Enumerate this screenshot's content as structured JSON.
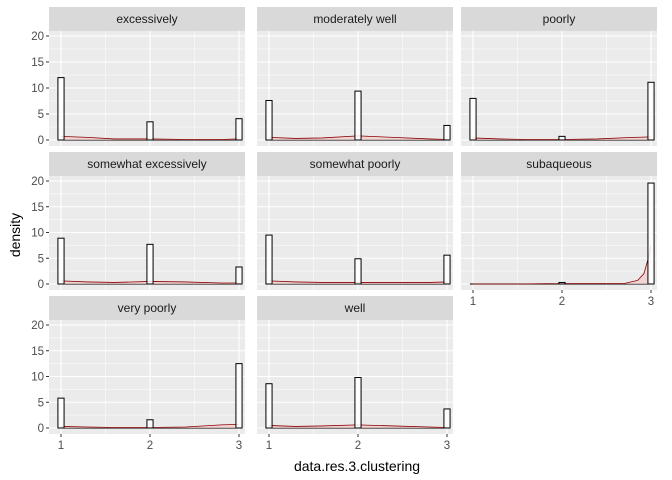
{
  "chart_data": {
    "type": "histogram",
    "xlabel": "data.res.3.clustering",
    "ylabel": "density",
    "xlim": [
      1,
      3
    ],
    "ylim": [
      0,
      20
    ],
    "x_ticks": [
      "1",
      "2",
      "3"
    ],
    "y_ticks": [
      "0",
      "5",
      "10",
      "15",
      "20"
    ],
    "bins": 30,
    "grid": true,
    "legend": "none",
    "colors": {
      "panel_background": "#ebebeb",
      "strip_background": "#d9d9d9",
      "gridline": "#ffffff",
      "bar_fill": "#ffffff",
      "bar_outline": "#000000",
      "density_fill": "#f4cccc",
      "density_line": "#8b0000"
    },
    "facets": [
      {
        "label": "excessively",
        "bars": [
          {
            "x": 1,
            "density": 12.0
          },
          {
            "x": 2,
            "density": 3.5
          },
          {
            "x": 3,
            "density": 4.1
          }
        ],
        "density_curve": [
          [
            1.0,
            0.7
          ],
          [
            1.3,
            0.5
          ],
          [
            1.6,
            0.2
          ],
          [
            2.0,
            0.2
          ],
          [
            2.4,
            0.1
          ],
          [
            2.8,
            0.1
          ],
          [
            3.0,
            0.2
          ]
        ]
      },
      {
        "label": "moderately well",
        "bars": [
          {
            "x": 1,
            "density": 7.6
          },
          {
            "x": 2,
            "density": 9.4
          },
          {
            "x": 3,
            "density": 2.8
          }
        ],
        "density_curve": [
          [
            1.0,
            0.5
          ],
          [
            1.3,
            0.3
          ],
          [
            1.6,
            0.4
          ],
          [
            2.0,
            0.8
          ],
          [
            2.4,
            0.5
          ],
          [
            2.8,
            0.2
          ],
          [
            3.0,
            0.1
          ]
        ]
      },
      {
        "label": "poorly",
        "bars": [
          {
            "x": 1,
            "density": 8.0
          },
          {
            "x": 2,
            "density": 0.7
          },
          {
            "x": 3,
            "density": 11.1
          }
        ],
        "density_curve": [
          [
            1.0,
            0.4
          ],
          [
            1.3,
            0.2
          ],
          [
            1.6,
            0.1
          ],
          [
            2.0,
            0.1
          ],
          [
            2.4,
            0.2
          ],
          [
            2.8,
            0.5
          ],
          [
            3.0,
            0.6
          ]
        ]
      },
      {
        "label": "somewhat excessively",
        "bars": [
          {
            "x": 1,
            "density": 8.9
          },
          {
            "x": 2,
            "density": 7.7
          },
          {
            "x": 3,
            "density": 3.3
          }
        ],
        "density_curve": [
          [
            1.0,
            0.6
          ],
          [
            1.3,
            0.4
          ],
          [
            1.6,
            0.3
          ],
          [
            2.0,
            0.5
          ],
          [
            2.4,
            0.4
          ],
          [
            2.8,
            0.2
          ],
          [
            3.0,
            0.2
          ]
        ]
      },
      {
        "label": "somewhat poorly",
        "bars": [
          {
            "x": 1,
            "density": 9.5
          },
          {
            "x": 2,
            "density": 4.9
          },
          {
            "x": 3,
            "density": 5.6
          }
        ],
        "density_curve": [
          [
            1.0,
            0.6
          ],
          [
            1.3,
            0.4
          ],
          [
            1.6,
            0.3
          ],
          [
            2.0,
            0.3
          ],
          [
            2.4,
            0.3
          ],
          [
            2.8,
            0.3
          ],
          [
            3.0,
            0.4
          ]
        ]
      },
      {
        "label": "subaqueous",
        "bars": [
          {
            "x": 1,
            "density": 0.0
          },
          {
            "x": 2,
            "density": 0.3
          },
          {
            "x": 3,
            "density": 19.6
          }
        ],
        "density_curve": [
          [
            1.0,
            0.0
          ],
          [
            1.5,
            0.0
          ],
          [
            1.95,
            0.1
          ],
          [
            2.0,
            0.2
          ],
          [
            2.05,
            0.1
          ],
          [
            2.7,
            0.1
          ],
          [
            2.85,
            0.7
          ],
          [
            2.92,
            2.0
          ],
          [
            2.97,
            5.0
          ],
          [
            3.0,
            7.5
          ]
        ]
      },
      {
        "label": "very poorly",
        "bars": [
          {
            "x": 1,
            "density": 5.8
          },
          {
            "x": 2,
            "density": 1.6
          },
          {
            "x": 3,
            "density": 12.5
          }
        ],
        "density_curve": [
          [
            1.0,
            0.3
          ],
          [
            1.3,
            0.2
          ],
          [
            1.6,
            0.1
          ],
          [
            2.0,
            0.1
          ],
          [
            2.4,
            0.2
          ],
          [
            2.8,
            0.6
          ],
          [
            3.0,
            0.7
          ]
        ]
      },
      {
        "label": "well",
        "bars": [
          {
            "x": 1,
            "density": 8.6
          },
          {
            "x": 2,
            "density": 9.8
          },
          {
            "x": 3,
            "density": 3.7
          }
        ],
        "density_curve": [
          [
            1.0,
            0.5
          ],
          [
            1.3,
            0.3
          ],
          [
            1.6,
            0.4
          ],
          [
            2.0,
            0.6
          ],
          [
            2.4,
            0.4
          ],
          [
            2.8,
            0.2
          ],
          [
            3.0,
            0.1
          ]
        ]
      }
    ]
  }
}
